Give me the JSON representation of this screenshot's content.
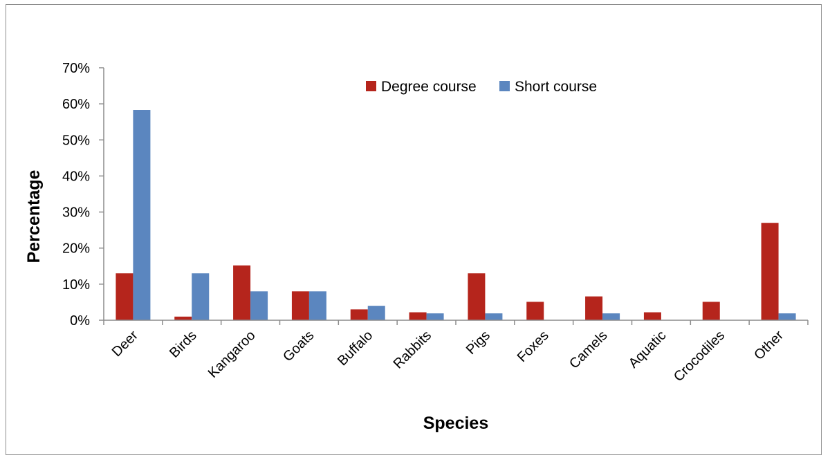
{
  "chart_data": {
    "type": "bar",
    "title": "",
    "xlabel": "Species",
    "ylabel": "Percentage",
    "categories": [
      "Deer",
      "Birds",
      "Kangaroo",
      "Goats",
      "Buffalo",
      "Rabbits",
      "Pigs",
      "Foxes",
      "Camels",
      "Aquatic",
      "Crocodiles",
      "Other"
    ],
    "series": [
      {
        "name": "Degree course",
        "color": "#b5251c",
        "values": [
          13,
          1,
          15.2,
          8,
          3,
          2.2,
          13,
          5.1,
          6.6,
          2.2,
          5.1,
          27
        ]
      },
      {
        "name": "Short course",
        "color": "#5b86bf",
        "values": [
          58.3,
          13,
          8,
          8,
          4,
          1.9,
          1.9,
          0,
          1.9,
          0,
          0,
          1.9
        ]
      }
    ],
    "ylim": [
      0,
      70
    ],
    "yticks": [
      0,
      10,
      20,
      30,
      40,
      50,
      60,
      70
    ],
    "ytick_labels": [
      "0%",
      "10%",
      "20%",
      "30%",
      "40%",
      "50%",
      "60%",
      "70%"
    ],
    "grid": false,
    "legend_position": "top-right"
  }
}
